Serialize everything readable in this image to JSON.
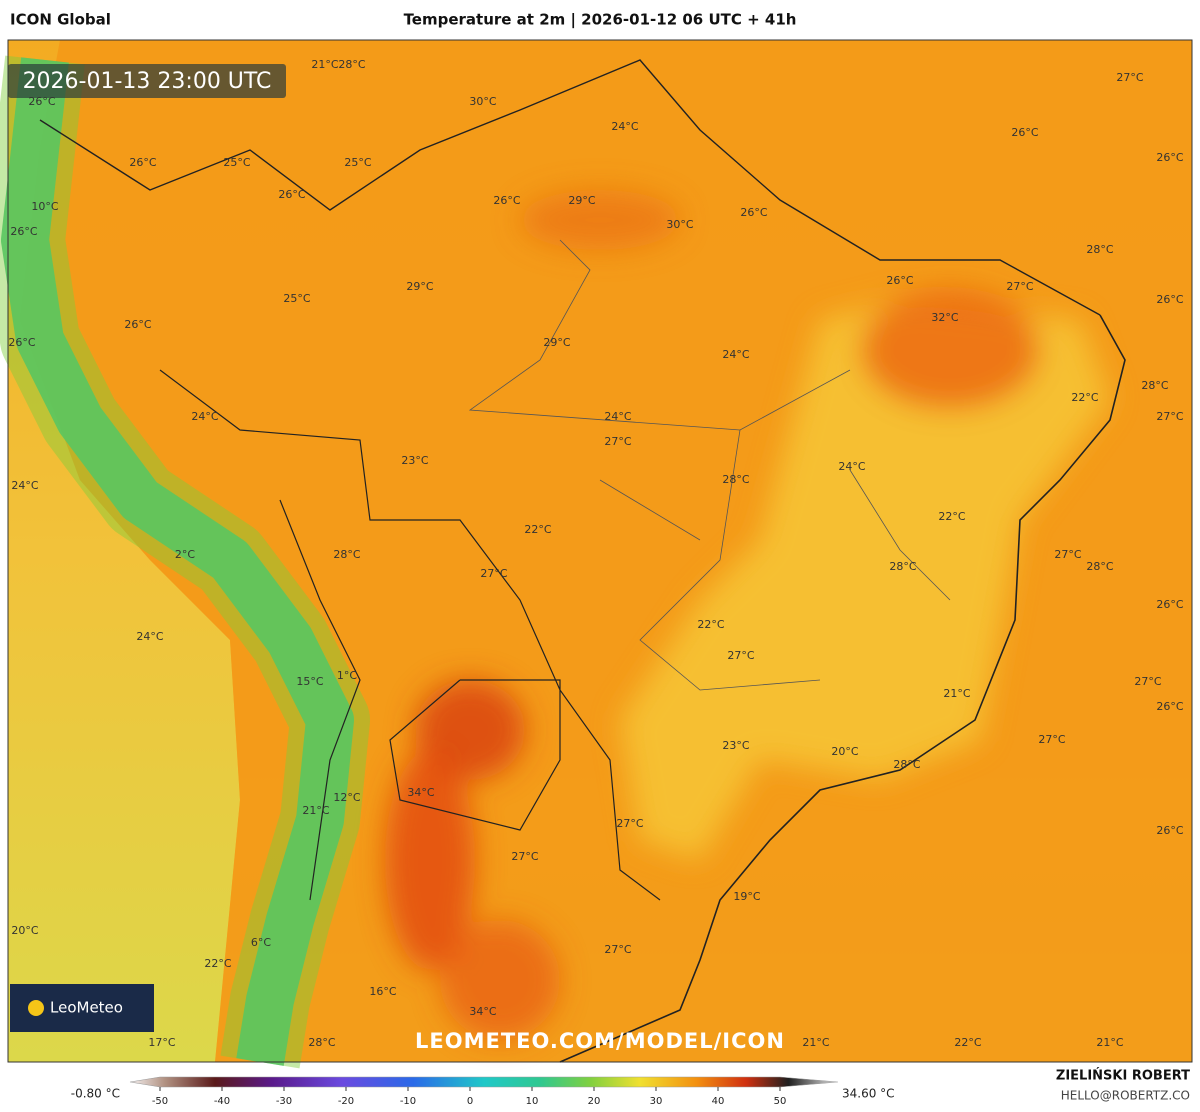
{
  "header": {
    "model": "ICON Global",
    "title": "Temperature at 2m | 2026-01-12 06 UTC + 41h",
    "valid_time": "2026-01-13 23:00 UTC"
  },
  "map": {
    "labels": [
      "21°C",
      "28°C",
      "26°C",
      "30°C",
      "24°C",
      "27°C",
      "26°C",
      "26°C",
      "26°C",
      "25°C",
      "25°C",
      "10°C",
      "26°C",
      "26°C",
      "29°C",
      "30°C",
      "26°C",
      "26°C",
      "28°C",
      "26°C",
      "27°C",
      "25°C",
      "29°C",
      "26°C",
      "26°C",
      "32°C",
      "26°C",
      "29°C",
      "24°C",
      "28°C",
      "22°C",
      "24°C",
      "24°C",
      "27°C",
      "27°C",
      "23°C",
      "24°C",
      "28°C",
      "24°C",
      "22°C",
      "22°C",
      "28°C",
      "2°C",
      "27°C",
      "27°C",
      "28°C",
      "28°C",
      "26°C",
      "24°C",
      "22°C",
      "27°C",
      "1°C",
      "15°C",
      "27°C",
      "21°C",
      "26°C",
      "23°C",
      "27°C",
      "20°C",
      "28°C",
      "34°C",
      "12°C",
      "21°C",
      "27°C",
      "26°C",
      "27°C",
      "19°C",
      "20°C",
      "6°C",
      "27°C",
      "22°C",
      "16°C",
      "34°C",
      "17°C",
      "28°C",
      "21°C",
      "22°C",
      "21°C"
    ],
    "watermark": "LEOMETEO.COM/MODEL/ICON",
    "logo": "LeoMeteo"
  },
  "colorbar": {
    "min_label": "-0.80 °C",
    "max_label": "34.60 °C",
    "ticks": [
      -50,
      -40,
      -30,
      -20,
      -10,
      0,
      10,
      20,
      30,
      40,
      50
    ]
  },
  "footer": {
    "author": "ZIELIŃSKI ROBERT",
    "email": "HELLO@ROBERTZ.CO"
  }
}
